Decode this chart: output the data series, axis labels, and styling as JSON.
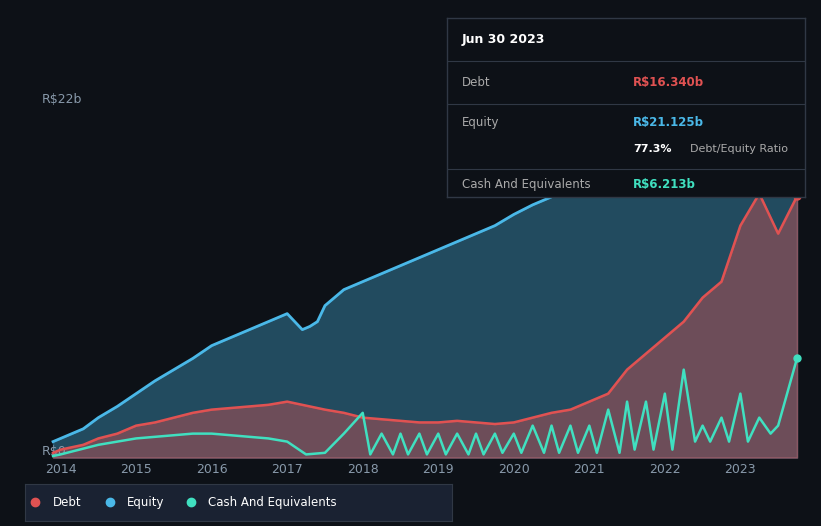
{
  "bg_color": "#0d1117",
  "ylabel_top": "R$22b",
  "ylabel_bottom": "R$0",
  "xlim": [
    2013.85,
    2023.85
  ],
  "ylim": [
    0,
    24
  ],
  "debt_color": "#e05252",
  "equity_color": "#4ab8e8",
  "cash_color": "#40e0c0",
  "legend_bg": "#1a2232",
  "tooltip_bg": "#0d1117",
  "tooltip_border": "#303845",
  "x_ticks": [
    2014,
    2015,
    2016,
    2017,
    2018,
    2019,
    2020,
    2021,
    2022,
    2023
  ],
  "tooltip_title": "Jun 30 2023",
  "tooltip_debt_label": "Debt",
  "tooltip_debt_value": "R$16.340b",
  "tooltip_equity_label": "Equity",
  "tooltip_equity_value": "R$21.125b",
  "tooltip_ratio": "77.3%",
  "tooltip_ratio_label": "Debt/Equity Ratio",
  "tooltip_cash_label": "Cash And Equivalents",
  "tooltip_cash_value": "R$6.213b",
  "legend_items": [
    "Debt",
    "Equity",
    "Cash And Equivalents"
  ],
  "equity_values": [
    [
      2013.9,
      1.0
    ],
    [
      2014.0,
      1.2
    ],
    [
      2014.3,
      1.8
    ],
    [
      2014.5,
      2.5
    ],
    [
      2014.75,
      3.2
    ],
    [
      2015.0,
      4.0
    ],
    [
      2015.25,
      4.8
    ],
    [
      2015.5,
      5.5
    ],
    [
      2015.75,
      6.2
    ],
    [
      2016.0,
      7.0
    ],
    [
      2016.25,
      7.5
    ],
    [
      2016.5,
      8.0
    ],
    [
      2016.75,
      8.5
    ],
    [
      2017.0,
      9.0
    ],
    [
      2017.1,
      8.5
    ],
    [
      2017.2,
      8.0
    ],
    [
      2017.3,
      8.2
    ],
    [
      2017.4,
      8.5
    ],
    [
      2017.5,
      9.5
    ],
    [
      2017.75,
      10.5
    ],
    [
      2018.0,
      11.0
    ],
    [
      2018.25,
      11.5
    ],
    [
      2018.5,
      12.0
    ],
    [
      2018.75,
      12.5
    ],
    [
      2019.0,
      13.0
    ],
    [
      2019.25,
      13.5
    ],
    [
      2019.5,
      14.0
    ],
    [
      2019.75,
      14.5
    ],
    [
      2020.0,
      15.2
    ],
    [
      2020.25,
      15.8
    ],
    [
      2020.5,
      16.3
    ],
    [
      2020.75,
      16.8
    ],
    [
      2021.0,
      17.0
    ],
    [
      2021.25,
      17.5
    ],
    [
      2021.5,
      18.0
    ],
    [
      2021.75,
      18.5
    ],
    [
      2022.0,
      19.5
    ],
    [
      2022.25,
      20.5
    ],
    [
      2022.5,
      21.2
    ],
    [
      2022.75,
      21.8
    ],
    [
      2023.0,
      22.3
    ],
    [
      2023.25,
      22.5
    ],
    [
      2023.5,
      22.0
    ],
    [
      2023.75,
      21.125
    ]
  ],
  "debt_values": [
    [
      2013.9,
      0.3
    ],
    [
      2014.0,
      0.5
    ],
    [
      2014.3,
      0.8
    ],
    [
      2014.5,
      1.2
    ],
    [
      2014.75,
      1.5
    ],
    [
      2015.0,
      2.0
    ],
    [
      2015.25,
      2.2
    ],
    [
      2015.5,
      2.5
    ],
    [
      2015.75,
      2.8
    ],
    [
      2016.0,
      3.0
    ],
    [
      2016.25,
      3.1
    ],
    [
      2016.5,
      3.2
    ],
    [
      2016.75,
      3.3
    ],
    [
      2017.0,
      3.5
    ],
    [
      2017.1,
      3.4
    ],
    [
      2017.2,
      3.3
    ],
    [
      2017.3,
      3.2
    ],
    [
      2017.4,
      3.1
    ],
    [
      2017.5,
      3.0
    ],
    [
      2017.75,
      2.8
    ],
    [
      2018.0,
      2.5
    ],
    [
      2018.25,
      2.4
    ],
    [
      2018.5,
      2.3
    ],
    [
      2018.75,
      2.2
    ],
    [
      2019.0,
      2.2
    ],
    [
      2019.25,
      2.3
    ],
    [
      2019.5,
      2.2
    ],
    [
      2019.75,
      2.1
    ],
    [
      2020.0,
      2.2
    ],
    [
      2020.25,
      2.5
    ],
    [
      2020.5,
      2.8
    ],
    [
      2020.75,
      3.0
    ],
    [
      2021.0,
      3.5
    ],
    [
      2021.25,
      4.0
    ],
    [
      2021.5,
      5.5
    ],
    [
      2021.75,
      6.5
    ],
    [
      2022.0,
      7.5
    ],
    [
      2022.25,
      8.5
    ],
    [
      2022.5,
      10.0
    ],
    [
      2022.75,
      11.0
    ],
    [
      2023.0,
      14.5
    ],
    [
      2023.25,
      16.5
    ],
    [
      2023.5,
      14.0
    ],
    [
      2023.75,
      16.34
    ]
  ],
  "cash_values": [
    [
      2013.9,
      0.1
    ],
    [
      2014.0,
      0.2
    ],
    [
      2014.25,
      0.5
    ],
    [
      2014.5,
      0.8
    ],
    [
      2014.75,
      1.0
    ],
    [
      2015.0,
      1.2
    ],
    [
      2015.25,
      1.3
    ],
    [
      2015.5,
      1.4
    ],
    [
      2015.75,
      1.5
    ],
    [
      2016.0,
      1.5
    ],
    [
      2016.25,
      1.4
    ],
    [
      2016.5,
      1.3
    ],
    [
      2016.75,
      1.2
    ],
    [
      2017.0,
      1.0
    ],
    [
      2017.25,
      0.2
    ],
    [
      2017.5,
      0.3
    ],
    [
      2017.75,
      1.5
    ],
    [
      2018.0,
      2.8
    ],
    [
      2018.1,
      0.2
    ],
    [
      2018.25,
      1.5
    ],
    [
      2018.4,
      0.2
    ],
    [
      2018.5,
      1.5
    ],
    [
      2018.6,
      0.2
    ],
    [
      2018.75,
      1.5
    ],
    [
      2018.85,
      0.2
    ],
    [
      2019.0,
      1.5
    ],
    [
      2019.1,
      0.2
    ],
    [
      2019.25,
      1.5
    ],
    [
      2019.4,
      0.2
    ],
    [
      2019.5,
      1.5
    ],
    [
      2019.6,
      0.2
    ],
    [
      2019.75,
      1.5
    ],
    [
      2019.85,
      0.3
    ],
    [
      2020.0,
      1.5
    ],
    [
      2020.1,
      0.3
    ],
    [
      2020.25,
      2.0
    ],
    [
      2020.4,
      0.3
    ],
    [
      2020.5,
      2.0
    ],
    [
      2020.6,
      0.3
    ],
    [
      2020.75,
      2.0
    ],
    [
      2020.85,
      0.3
    ],
    [
      2021.0,
      2.0
    ],
    [
      2021.1,
      0.3
    ],
    [
      2021.25,
      3.0
    ],
    [
      2021.4,
      0.3
    ],
    [
      2021.5,
      3.5
    ],
    [
      2021.6,
      0.5
    ],
    [
      2021.75,
      3.5
    ],
    [
      2021.85,
      0.5
    ],
    [
      2022.0,
      4.0
    ],
    [
      2022.1,
      0.5
    ],
    [
      2022.25,
      5.5
    ],
    [
      2022.4,
      1.0
    ],
    [
      2022.5,
      2.0
    ],
    [
      2022.6,
      1.0
    ],
    [
      2022.75,
      2.5
    ],
    [
      2022.85,
      1.0
    ],
    [
      2023.0,
      4.0
    ],
    [
      2023.1,
      1.0
    ],
    [
      2023.25,
      2.5
    ],
    [
      2023.4,
      1.5
    ],
    [
      2023.5,
      2.0
    ],
    [
      2023.75,
      6.213
    ]
  ]
}
